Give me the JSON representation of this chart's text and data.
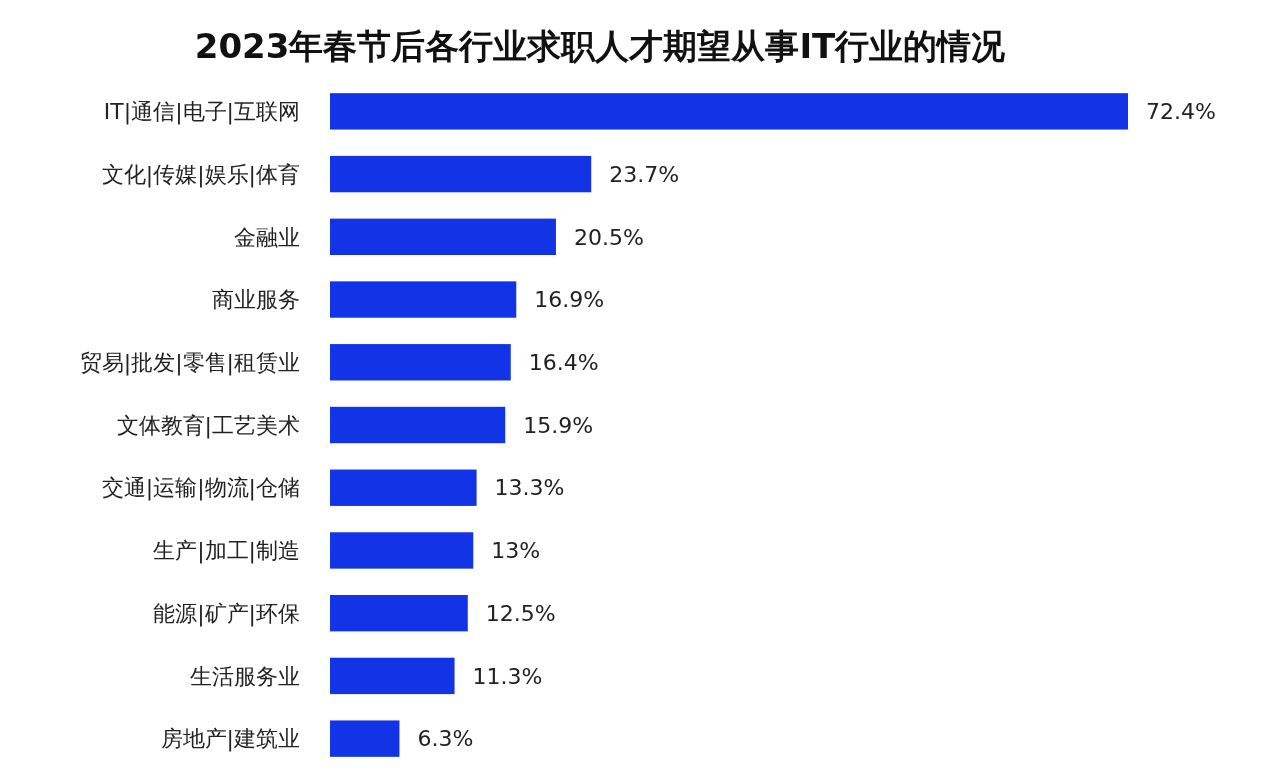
{
  "chart_data": {
    "type": "bar",
    "orientation": "horizontal",
    "title": "2023年春节后各行业求职人才期望从事IT行业的情况",
    "categories": [
      "IT|通信|电子|互联网",
      "文化|传媒|娱乐|体育",
      "金融业",
      "商业服务",
      "贸易|批发|零售|租赁业",
      "文体教育|工艺美术",
      "交通|运输|物流|仓储",
      "生产|加工|制造",
      "能源|矿产|环保",
      "生活服务业",
      "房地产|建筑业"
    ],
    "values": [
      72.4,
      23.7,
      20.5,
      16.9,
      16.4,
      15.9,
      13.3,
      13,
      12.5,
      11.3,
      6.3
    ],
    "value_labels": [
      "72.4%",
      "23.7%",
      "20.5%",
      "16.9%",
      "16.4%",
      "15.9%",
      "13.3%",
      "13%",
      "12.5%",
      "11.3%",
      "6.3%"
    ],
    "color": "#1234e6"
  }
}
